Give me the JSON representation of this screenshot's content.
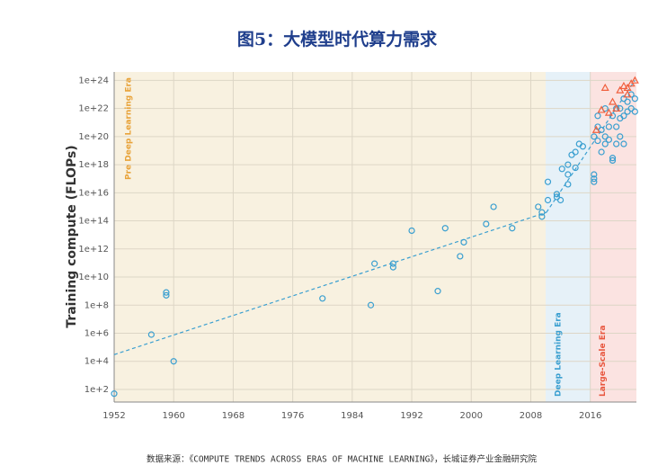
{
  "chart_data": {
    "type": "scatter",
    "title": "图5：大模型时代算力需求",
    "ylabel": "Training compute (FLOPs)",
    "source": "数据来源：《COMPUTE TRENDS ACROSS ERAS OF MACHINE LEARNING》，长城证券产业金融研究院",
    "log_y": true,
    "grid": true,
    "xlim": [
      1952,
      2022.2
    ],
    "xticks": [
      1952,
      1960,
      1968,
      1976,
      1984,
      1992,
      2000,
      2008,
      2016
    ],
    "ylim": [
      12.6,
      4e+24
    ],
    "yticks": [
      {
        "value": 100.0,
        "label": "1e+2"
      },
      {
        "value": 10000.0,
        "label": "1e+4"
      },
      {
        "value": 1000000.0,
        "label": "1e+6"
      },
      {
        "value": 100000000.0,
        "label": "1e+8"
      },
      {
        "value": 10000000000.0,
        "label": "1e+10"
      },
      {
        "value": 1000000000000.0,
        "label": "1e+12"
      },
      {
        "value": 100000000000000.0,
        "label": "1e+14"
      },
      {
        "value": 1e+16,
        "label": "1e+16"
      },
      {
        "value": 1e+18,
        "label": "1e+18"
      },
      {
        "value": 1e+20,
        "label": "1e+20"
      },
      {
        "value": 1e+22,
        "label": "1e+22"
      },
      {
        "value": 1e+24,
        "label": "1e+24"
      }
    ],
    "eras": [
      {
        "name": "Pre Deep Learning Era",
        "start": 1952,
        "color": "#f8f1e0",
        "text_color": "#e8a33a"
      },
      {
        "name": "Deep Learning Era",
        "start": 2010,
        "color": "#e6f1f8",
        "text_color": "#3a9fd0"
      },
      {
        "name": "Large-Scale Era",
        "start": 2016,
        "color": "#fbe3e1",
        "text_color": "#e8563e"
      }
    ],
    "trend_lines": [
      {
        "color": "#3a9fd0",
        "x": [
          1952,
          2010.1
        ],
        "values": [
          30000.0,
          400000000000000.0
        ]
      },
      {
        "color": "#3a9fd0",
        "x": [
          2010.1,
          2022
        ],
        "values": [
          400000000000000.0,
          1e+24
        ]
      }
    ],
    "series": [
      {
        "marker": "circle",
        "color": "#3a9fd0",
        "x": [
          1952,
          1957,
          1959,
          1959,
          1960,
          1980,
          1986.5,
          1987,
          1989.5,
          1989.5,
          1992,
          1995.5,
          1996.5,
          1998.5,
          1999,
          2002,
          2003,
          2005.5,
          2009,
          2009.5,
          2009.5,
          2010.3,
          2010.3,
          2011.5,
          2011.5,
          2012,
          2012.2,
          2013,
          2013,
          2013,
          2013.5,
          2014,
          2014,
          2014.5,
          2015,
          2016.5,
          2016.5,
          2016.5,
          2016.5,
          2017,
          2017,
          2017,
          2017.5,
          2017.5,
          2018,
          2018,
          2018,
          2018.5,
          2018.5,
          2019,
          2019,
          2019,
          2019.5,
          2019.5,
          2019.5,
          2020,
          2020,
          2020,
          2020.5,
          2020.5,
          2020.5,
          2021,
          2021,
          2021.5,
          2021.5,
          2022,
          2022
        ],
        "values": [
          50.0,
          800000.0,
          500000000.0,
          800000000.0,
          10000.0,
          300000000.0,
          100000000.0,
          90000000000.0,
          50000000000.0,
          90000000000.0,
          20000000000000.0,
          1000000000.0,
          30000000000000.0,
          300000000000.0,
          3000000000000.0,
          60000000000000.0,
          1000000000000000.0,
          30000000000000.0,
          1000000000000000.0,
          200000000000000.0,
          400000000000000.0,
          6e+16,
          3000000000000000.0,
          5000000000000000.0,
          8000000000000000.0,
          3000000000000000.0,
          5e+17,
          2e+17,
          4e+16,
          1e+18,
          5e+18,
          8e+18,
          6e+17,
          3e+19,
          2e+19,
          2e+17,
          1e+17,
          6e+16,
          1e+20,
          3e+21,
          5e+20,
          5e+19,
          3e+20,
          8e+18,
          1e+22,
          1e+20,
          3e+19,
          5e+20,
          6e+19,
          3e+18,
          2e+18,
          3e+21,
          3e+19,
          1e+22,
          5e+20,
          1e+22,
          1e+20,
          2e+21,
          5e+22,
          3e+21,
          3e+19,
          3e+22,
          6e+21,
          1e+23,
          1e+22,
          5e+22,
          6e+21
        ]
      },
      {
        "marker": "triangle",
        "color": "#f0603e",
        "x": [
          2016.8,
          2017.5,
          2018,
          2018.5,
          2019,
          2019.5,
          2020,
          2020.5,
          2021,
          2021.5,
          2022,
          2021
        ],
        "values": [
          3e+20,
          8e+21,
          3e+23,
          5e+21,
          3e+22,
          1e+22,
          2e+23,
          4e+23,
          1e+23,
          6e+23,
          1e+24,
          3e+23
        ]
      }
    ]
  }
}
